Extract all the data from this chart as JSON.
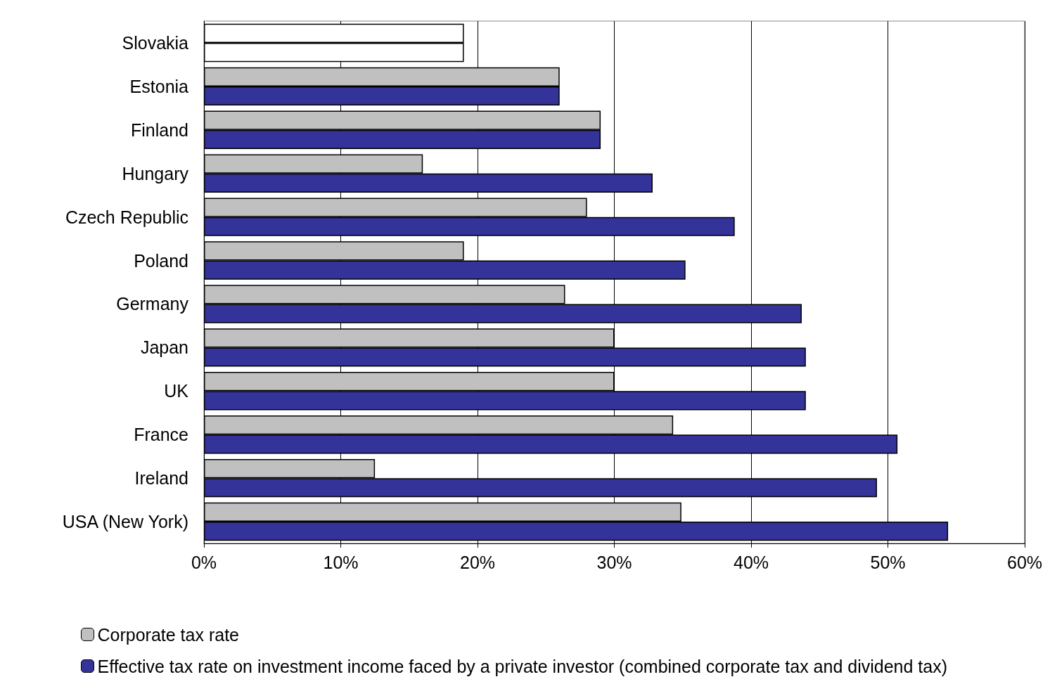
{
  "chart_data": {
    "type": "bar",
    "orientation": "horizontal",
    "categories": [
      "Slovakia",
      "Estonia",
      "Finland",
      "Hungary",
      "Czech Republic",
      "Poland",
      "Germany",
      "Japan",
      "UK",
      "France",
      "Ireland",
      "USA (New York)"
    ],
    "series": [
      {
        "name": "Corporate tax rate",
        "color": "#c0c0c0",
        "colors": [
          "#ffffff",
          "#c0c0c0",
          "#c0c0c0",
          "#c0c0c0",
          "#c0c0c0",
          "#c0c0c0",
          "#c0c0c0",
          "#c0c0c0",
          "#c0c0c0",
          "#c0c0c0",
          "#c0c0c0",
          "#c0c0c0"
        ],
        "values": [
          19,
          26,
          29,
          16,
          28,
          19,
          26.4,
          30,
          30,
          34.3,
          12.5,
          34.9
        ]
      },
      {
        "name": "Effective tax rate on investment income faced by a private investor (combined corporate tax and dividend tax)",
        "color": "#333399",
        "colors": [
          "#ffffff",
          "#333399",
          "#333399",
          "#333399",
          "#333399",
          "#333399",
          "#333399",
          "#333399",
          "#333399",
          "#333399",
          "#333399",
          "#333399"
        ],
        "values": [
          19,
          26,
          29,
          32.8,
          38.8,
          35.2,
          43.7,
          44,
          44,
          50.7,
          49.2,
          54.4
        ]
      }
    ],
    "xlim": [
      0,
      60
    ],
    "xticks": [
      {
        "value": 0,
        "label": "0%"
      },
      {
        "value": 10,
        "label": "10%"
      },
      {
        "value": 20,
        "label": "20%"
      },
      {
        "value": 30,
        "label": "30%"
      },
      {
        "value": 40,
        "label": "40%"
      },
      {
        "value": 50,
        "label": "50%"
      },
      {
        "value": 60,
        "label": "60%"
      }
    ],
    "grid": "x",
    "legend": "bottom left"
  }
}
